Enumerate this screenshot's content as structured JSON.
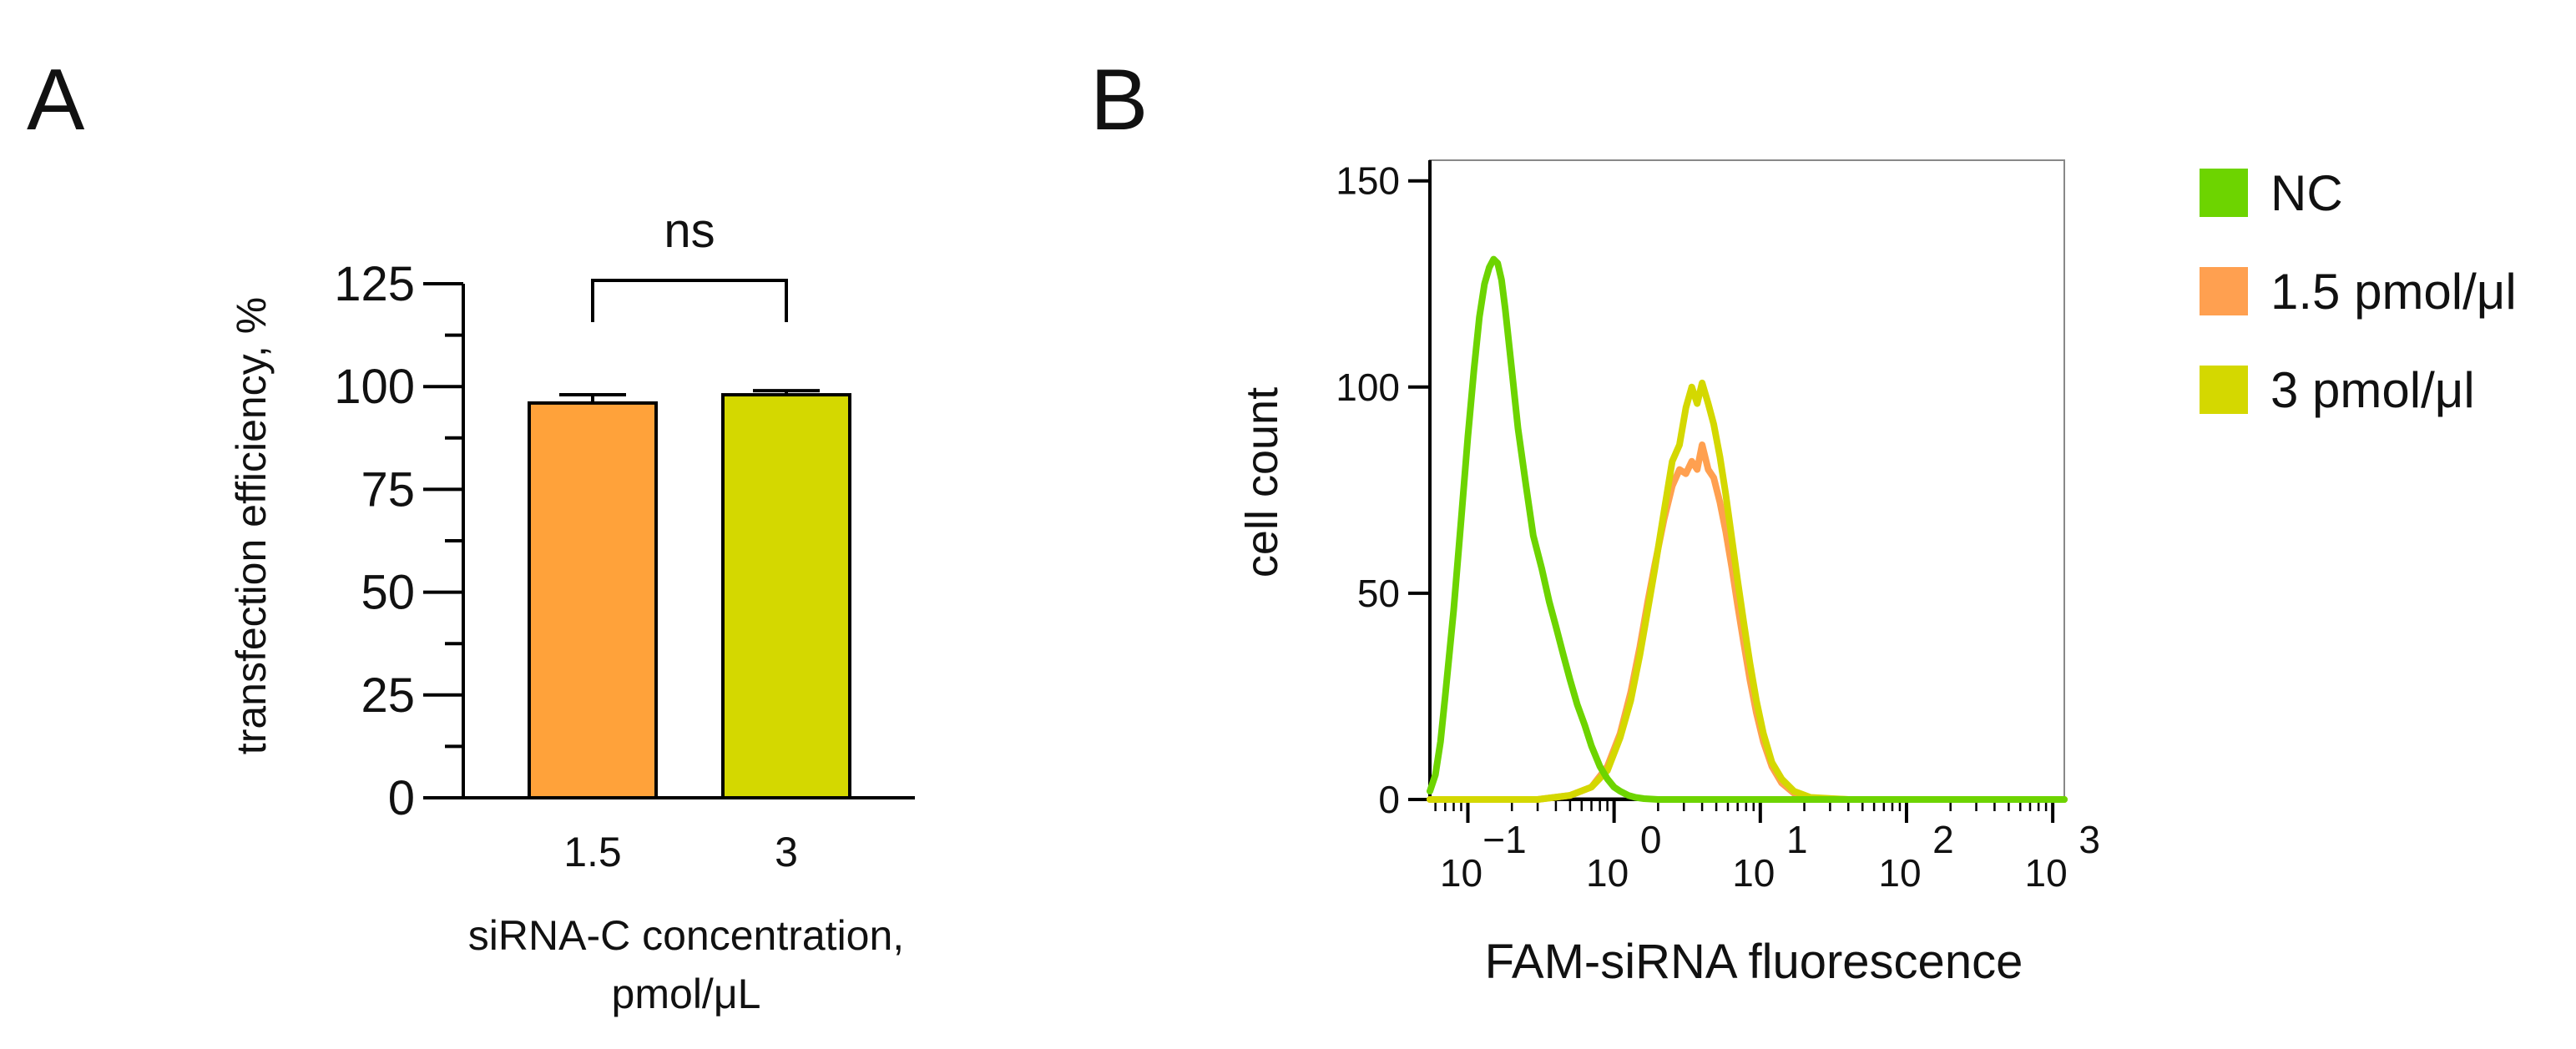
{
  "panel_labels": {
    "a": "A",
    "b": "B"
  },
  "chart_data": [
    {
      "id": "panel-a",
      "type": "bar",
      "title": "",
      "categories": [
        "1.5",
        "3"
      ],
      "values": [
        96,
        98
      ],
      "errors": [
        2,
        1
      ],
      "colors": [
        "#FFA23A",
        "#D4D800"
      ],
      "ylabel": "transfection efficiency, %",
      "xlabel_lines": [
        "siRNA-C concentration,",
        "pmol/μL"
      ],
      "ylim": [
        0,
        125
      ],
      "yticks": [
        0,
        25,
        50,
        75,
        100,
        125
      ],
      "ytick_labels": [
        "0",
        "25",
        "50",
        "75",
        "100",
        "125"
      ],
      "y_minor_step": 12.5,
      "significance": {
        "between": [
          0,
          1
        ],
        "y": 125,
        "label": "ns"
      }
    },
    {
      "id": "panel-b",
      "type": "line",
      "title": "",
      "xscale": "log",
      "xlim": [
        0.055,
        1200
      ],
      "ylim": [
        0,
        155
      ],
      "yticks": [
        0,
        50,
        100,
        150
      ],
      "ytick_labels": [
        "0",
        "50",
        "100",
        "150"
      ],
      "xticks": [
        0.1,
        1,
        10,
        100,
        1000
      ],
      "xtick_base": "10",
      "xtick_exponents": [
        "−1",
        "0",
        "1",
        "2",
        "3"
      ],
      "ylabel": "cell count",
      "xlabel": "FAM-siRNA fluorescence",
      "legend_position": "right",
      "series": [
        {
          "name": "NC",
          "color": "#6DD400",
          "x": [
            0.055,
            0.06,
            0.065,
            0.07,
            0.08,
            0.09,
            0.1,
            0.11,
            0.12,
            0.13,
            0.14,
            0.15,
            0.16,
            0.17,
            0.18,
            0.2,
            0.22,
            0.25,
            0.28,
            0.32,
            0.36,
            0.4,
            0.45,
            0.5,
            0.56,
            0.63,
            0.7,
            0.8,
            0.9,
            1.0,
            1.1,
            1.25,
            1.4,
            1.6,
            2,
            3,
            10,
            100,
            1200
          ],
          "y": [
            2,
            6,
            14,
            25,
            46,
            68,
            88,
            104,
            117,
            125,
            129,
            131,
            130,
            126,
            119,
            104,
            90,
            76,
            64,
            56,
            48,
            42,
            35,
            29,
            23,
            18,
            13,
            8,
            5,
            3,
            2,
            1,
            0.5,
            0.2,
            0,
            0,
            0,
            0,
            0
          ]
        },
        {
          "name": "1.5 pmol/μl",
          "color": "#FFA050",
          "x": [
            0.055,
            0.3,
            0.5,
            0.7,
            0.9,
            1.1,
            1.3,
            1.5,
            1.7,
            1.9,
            2.2,
            2.5,
            2.8,
            3.1,
            3.4,
            3.7,
            4.0,
            4.4,
            4.8,
            5.3,
            5.8,
            6.4,
            7.0,
            7.7,
            8.5,
            9.4,
            10.5,
            12,
            14,
            17,
            22,
            40,
            1200
          ],
          "y": [
            0,
            0,
            1,
            3,
            8,
            16,
            26,
            37,
            48,
            57,
            68,
            76,
            80,
            79,
            82,
            80,
            86,
            80,
            78,
            72,
            65,
            56,
            47,
            38,
            29,
            21,
            14,
            8,
            4,
            1.5,
            0.3,
            0,
            0
          ]
        },
        {
          "name": "3 pmol/μl",
          "color": "#D4D800",
          "x": [
            0.055,
            0.3,
            0.5,
            0.7,
            0.9,
            1.1,
            1.3,
            1.5,
            1.7,
            1.9,
            2.2,
            2.5,
            2.8,
            3.1,
            3.4,
            3.7,
            4.0,
            4.4,
            4.8,
            5.3,
            5.8,
            6.4,
            7.0,
            7.7,
            8.5,
            9.4,
            10.5,
            12,
            14,
            17,
            22,
            40,
            1200
          ],
          "y": [
            0,
            0,
            1,
            3,
            7,
            15,
            24,
            35,
            46,
            56,
            70,
            82,
            86,
            95,
            100,
            96,
            101,
            96,
            91,
            83,
            74,
            63,
            53,
            43,
            33,
            24,
            16,
            9,
            5,
            2,
            0.5,
            0,
            0
          ]
        }
      ]
    }
  ]
}
